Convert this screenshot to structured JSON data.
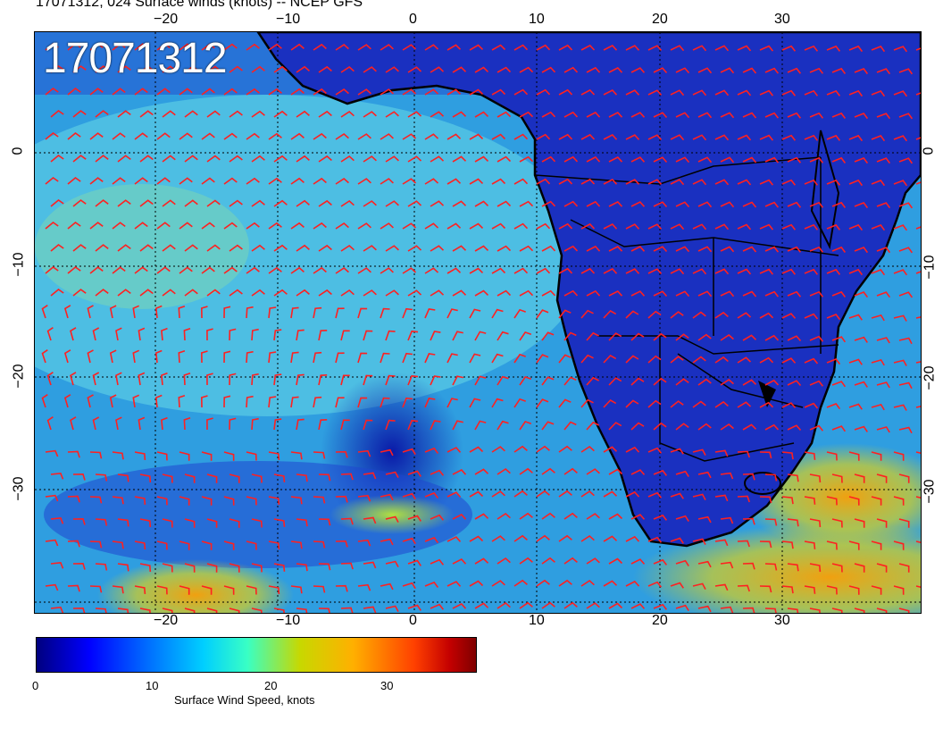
{
  "title": "17071312, 024 Surface winds (knots) -- NCEP GFS",
  "map_label": "17071312",
  "top_ticks": [
    "−20",
    "−10",
    "0",
    "10",
    "20",
    "30"
  ],
  "bottom_ticks": [
    "−20",
    "−10",
    "0",
    "10",
    "20",
    "30"
  ],
  "left_ticks": [
    "0",
    "−10",
    "−20",
    "−30"
  ],
  "right_ticks": [
    "0",
    "−10",
    "−20",
    "−30"
  ],
  "colorbar": {
    "ticks": [
      "0",
      "10",
      "20",
      "30"
    ],
    "label": "Surface Wind Speed, knots"
  },
  "colors": {
    "barb": "#ff2020",
    "ocean_low": "#1530c8",
    "ocean_mid": "#33b0e8",
    "land": "#1a2cb8",
    "high_wind": "#e8c020",
    "coastline": "#000000"
  }
}
